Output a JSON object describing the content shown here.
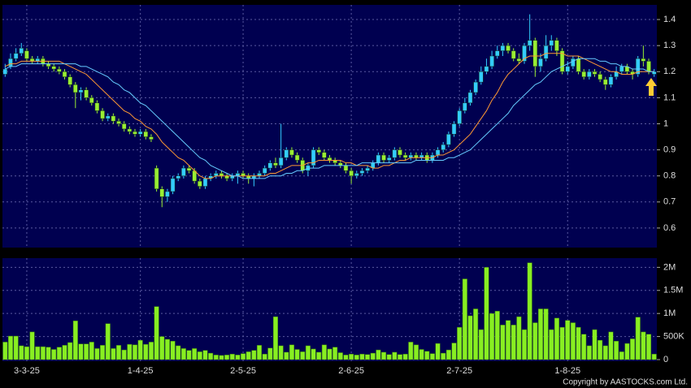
{
  "chart_data": [
    {
      "type": "candlestick",
      "up_color": "#33ccff",
      "down_color": "#99ee33",
      "grid": true,
      "categories": [
        null,
        null,
        null,
        null,
        "3-3-25",
        null,
        null,
        null,
        null,
        null,
        null,
        null,
        null,
        null,
        null,
        null,
        null,
        null,
        null,
        null,
        null,
        null,
        null,
        null,
        null,
        "1-4-25",
        null,
        null,
        null,
        null,
        null,
        null,
        null,
        null,
        null,
        null,
        null,
        null,
        null,
        null,
        null,
        null,
        null,
        null,
        "2-5-25",
        null,
        null,
        null,
        null,
        null,
        null,
        null,
        null,
        null,
        null,
        null,
        null,
        null,
        null,
        null,
        null,
        null,
        null,
        null,
        "2-6-25",
        null,
        null,
        null,
        null,
        null,
        null,
        null,
        null,
        null,
        null,
        null,
        null,
        null,
        null,
        null,
        null,
        null,
        null,
        null,
        "2-7-25",
        null,
        null,
        null,
        null,
        null,
        null,
        null,
        null,
        null,
        null,
        null,
        null,
        null,
        null,
        null,
        null,
        null,
        null,
        null,
        "1-8-25",
        null,
        null,
        null,
        null,
        null,
        null,
        null,
        null,
        null,
        null,
        null,
        null,
        null,
        null,
        null,
        null
      ],
      "open": [
        1.19,
        1.22,
        1.25,
        1.27,
        1.28,
        1.25,
        1.24,
        1.25,
        1.23,
        1.22,
        1.21,
        1.2,
        1.18,
        1.15,
        1.12,
        1.13,
        1.1,
        1.08,
        1.05,
        1.02,
        1.03,
        1.01,
        1.0,
        0.98,
        0.97,
        0.96,
        0.97,
        0.95,
        0.83,
        0.75,
        0.72,
        0.74,
        0.79,
        0.8,
        0.83,
        0.82,
        0.78,
        0.76,
        0.79,
        0.8,
        0.81,
        0.8,
        0.79,
        0.8,
        0.81,
        0.8,
        0.79,
        0.8,
        0.81,
        0.83,
        0.85,
        0.84,
        0.87,
        0.9,
        0.88,
        0.86,
        0.82,
        0.84,
        0.9,
        0.89,
        0.87,
        0.86,
        0.85,
        0.84,
        0.82,
        0.8,
        0.81,
        0.82,
        0.83,
        0.85,
        0.88,
        0.86,
        0.87,
        0.9,
        0.88,
        0.87,
        0.88,
        0.87,
        0.88,
        0.86,
        0.88,
        0.9,
        0.92,
        0.96,
        1.0,
        1.05,
        1.08,
        1.12,
        1.16,
        1.2,
        1.22,
        1.26,
        1.28,
        1.3,
        1.28,
        1.25,
        1.24,
        1.3,
        1.32,
        1.22,
        1.25,
        1.3,
        1.32,
        1.28,
        1.2,
        1.22,
        1.25,
        1.2,
        1.18,
        1.2,
        1.19,
        1.17,
        1.15,
        1.18,
        1.2,
        1.22,
        1.2,
        1.19,
        1.25,
        1.24,
        1.19
      ],
      "high": [
        1.23,
        1.27,
        1.29,
        1.31,
        1.29,
        1.26,
        1.26,
        1.26,
        1.24,
        1.23,
        1.22,
        1.21,
        1.19,
        1.16,
        1.14,
        1.14,
        1.11,
        1.09,
        1.06,
        1.04,
        1.04,
        1.02,
        1.01,
        0.99,
        0.98,
        0.98,
        0.98,
        0.96,
        0.84,
        0.76,
        0.75,
        0.8,
        0.81,
        0.84,
        0.84,
        0.83,
        0.79,
        0.8,
        0.81,
        0.82,
        0.82,
        0.81,
        0.81,
        0.82,
        0.82,
        0.81,
        0.81,
        0.82,
        0.84,
        0.86,
        0.87,
        1.0,
        0.91,
        0.91,
        0.89,
        0.87,
        0.85,
        0.91,
        0.91,
        0.9,
        0.88,
        0.87,
        0.86,
        0.85,
        0.83,
        0.82,
        0.83,
        0.84,
        0.86,
        0.89,
        0.89,
        0.88,
        0.91,
        0.91,
        0.89,
        0.89,
        0.89,
        0.89,
        0.89,
        0.89,
        0.91,
        0.93,
        0.97,
        1.01,
        1.06,
        1.1,
        1.13,
        1.17,
        1.22,
        1.25,
        1.28,
        1.3,
        1.31,
        1.31,
        1.29,
        1.27,
        1.31,
        1.42,
        1.33,
        1.27,
        1.34,
        1.34,
        1.33,
        1.29,
        1.24,
        1.26,
        1.26,
        1.21,
        1.21,
        1.21,
        1.2,
        1.18,
        1.19,
        1.22,
        1.23,
        1.23,
        1.21,
        1.26,
        1.3,
        1.25,
        1.21
      ],
      "low": [
        1.18,
        1.21,
        1.24,
        1.26,
        1.24,
        1.23,
        1.23,
        1.22,
        1.21,
        1.2,
        1.19,
        1.17,
        1.14,
        1.06,
        1.09,
        1.09,
        1.07,
        1.04,
        1.01,
        1.01,
        1.0,
        0.99,
        0.97,
        0.96,
        0.95,
        0.95,
        0.94,
        0.93,
        0.74,
        0.68,
        0.7,
        0.73,
        0.78,
        0.79,
        0.81,
        0.77,
        0.75,
        0.75,
        0.78,
        0.79,
        0.79,
        0.78,
        0.78,
        0.77,
        0.79,
        0.77,
        0.76,
        0.79,
        0.8,
        0.82,
        0.83,
        0.83,
        0.86,
        0.87,
        0.85,
        0.81,
        0.8,
        0.83,
        0.88,
        0.86,
        0.85,
        0.84,
        0.83,
        0.81,
        0.77,
        0.79,
        0.8,
        0.81,
        0.82,
        0.84,
        0.85,
        0.85,
        0.86,
        0.87,
        0.86,
        0.86,
        0.86,
        0.86,
        0.85,
        0.85,
        0.87,
        0.89,
        0.91,
        0.95,
        0.99,
        1.04,
        1.07,
        1.11,
        1.15,
        1.19,
        1.21,
        1.25,
        1.26,
        1.27,
        1.24,
        1.23,
        1.23,
        1.28,
        1.18,
        1.2,
        1.24,
        1.28,
        1.26,
        1.19,
        1.19,
        1.21,
        1.19,
        1.17,
        1.17,
        1.18,
        1.16,
        1.13,
        1.14,
        1.17,
        1.19,
        1.19,
        1.17,
        1.18,
        1.22,
        1.19,
        1.18
      ],
      "close": [
        1.21,
        1.25,
        1.27,
        1.29,
        1.25,
        1.24,
        1.25,
        1.23,
        1.22,
        1.21,
        1.2,
        1.18,
        1.15,
        1.12,
        1.13,
        1.1,
        1.08,
        1.05,
        1.02,
        1.03,
        1.01,
        1.0,
        0.98,
        0.97,
        0.96,
        0.97,
        0.95,
        0.94,
        0.75,
        0.72,
        0.74,
        0.79,
        0.8,
        0.83,
        0.82,
        0.78,
        0.76,
        0.79,
        0.8,
        0.81,
        0.8,
        0.79,
        0.8,
        0.81,
        0.8,
        0.79,
        0.8,
        0.81,
        0.83,
        0.85,
        0.84,
        0.87,
        0.9,
        0.88,
        0.86,
        0.82,
        0.84,
        0.9,
        0.89,
        0.87,
        0.86,
        0.85,
        0.84,
        0.82,
        0.8,
        0.81,
        0.82,
        0.83,
        0.85,
        0.88,
        0.86,
        0.87,
        0.9,
        0.88,
        0.87,
        0.88,
        0.87,
        0.88,
        0.86,
        0.88,
        0.9,
        0.92,
        0.96,
        1.0,
        1.05,
        1.08,
        1.12,
        1.16,
        1.2,
        1.22,
        1.26,
        1.28,
        1.3,
        1.28,
        1.25,
        1.24,
        1.3,
        1.32,
        1.22,
        1.25,
        1.3,
        1.32,
        1.28,
        1.2,
        1.22,
        1.25,
        1.2,
        1.18,
        1.2,
        1.19,
        1.17,
        1.15,
        1.18,
        1.2,
        1.22,
        1.2,
        1.19,
        1.25,
        1.24,
        1.2,
        1.2
      ],
      "series": [
        {
          "color": "#ff9933",
          "values": [
            1.22,
            1.23,
            1.23,
            1.24,
            1.24,
            1.24,
            1.24,
            1.24,
            1.24,
            1.24,
            1.24,
            1.23,
            1.22,
            1.21,
            1.2,
            1.19,
            1.17,
            1.15,
            1.13,
            1.11,
            1.09,
            1.07,
            1.05,
            1.04,
            1.02,
            1.01,
            0.99,
            0.98,
            0.96,
            0.93,
            0.91,
            0.89,
            0.87,
            0.86,
            0.84,
            0.82,
            0.8,
            0.79,
            0.79,
            0.8,
            0.8,
            0.8,
            0.8,
            0.8,
            0.8,
            0.8,
            0.8,
            0.8,
            0.8,
            0.81,
            0.81,
            0.82,
            0.83,
            0.84,
            0.84,
            0.84,
            0.85,
            0.85,
            0.86,
            0.86,
            0.86,
            0.86,
            0.86,
            0.85,
            0.85,
            0.84,
            0.84,
            0.84,
            0.83,
            0.83,
            0.84,
            0.84,
            0.85,
            0.86,
            0.86,
            0.87,
            0.87,
            0.87,
            0.87,
            0.87,
            0.88,
            0.88,
            0.89,
            0.9,
            0.92,
            0.94,
            0.96,
            0.99,
            1.02,
            1.05,
            1.09,
            1.12,
            1.16,
            1.19,
            1.21,
            1.23,
            1.25,
            1.26,
            1.26,
            1.26,
            1.27,
            1.27,
            1.27,
            1.27,
            1.26,
            1.26,
            1.26,
            1.25,
            1.24,
            1.23,
            1.22,
            1.21,
            1.2,
            1.2,
            1.19,
            1.19,
            1.19,
            1.2,
            1.2,
            1.2,
            1.2
          ]
        },
        {
          "color": "#66ccff",
          "values": [
            1.21,
            1.22,
            1.22,
            1.23,
            1.23,
            1.23,
            1.23,
            1.23,
            1.23,
            1.23,
            1.23,
            1.23,
            1.23,
            1.23,
            1.22,
            1.22,
            1.21,
            1.2,
            1.19,
            1.18,
            1.16,
            1.15,
            1.13,
            1.12,
            1.1,
            1.08,
            1.07,
            1.05,
            1.03,
            1.01,
            0.99,
            0.97,
            0.95,
            0.93,
            0.91,
            0.89,
            0.87,
            0.86,
            0.84,
            0.83,
            0.82,
            0.81,
            0.8,
            0.8,
            0.79,
            0.79,
            0.79,
            0.79,
            0.79,
            0.8,
            0.8,
            0.8,
            0.81,
            0.81,
            0.82,
            0.82,
            0.83,
            0.83,
            0.83,
            0.84,
            0.84,
            0.84,
            0.84,
            0.84,
            0.84,
            0.84,
            0.85,
            0.85,
            0.85,
            0.85,
            0.85,
            0.85,
            0.85,
            0.85,
            0.85,
            0.85,
            0.86,
            0.86,
            0.86,
            0.86,
            0.86,
            0.86,
            0.87,
            0.87,
            0.88,
            0.89,
            0.9,
            0.92,
            0.94,
            0.96,
            0.98,
            1.0,
            1.02,
            1.04,
            1.07,
            1.09,
            1.11,
            1.13,
            1.15,
            1.16,
            1.18,
            1.2,
            1.21,
            1.22,
            1.23,
            1.24,
            1.25,
            1.25,
            1.25,
            1.25,
            1.24,
            1.24,
            1.23,
            1.23,
            1.22,
            1.22,
            1.21,
            1.21,
            1.21,
            1.2,
            1.2
          ]
        }
      ],
      "ylim": [
        0.525,
        1.45
      ],
      "yticks": [
        0.6,
        0.7,
        0.8,
        0.9,
        1,
        1.1,
        1.2,
        1.3,
        1.4
      ]
    },
    {
      "type": "bar",
      "color": "#88ee22",
      "grid": true,
      "values": [
        380000,
        510000,
        510000,
        300000,
        280000,
        600000,
        280000,
        280000,
        270000,
        220000,
        270000,
        310000,
        370000,
        840000,
        340000,
        340000,
        380000,
        240000,
        310000,
        780000,
        240000,
        310000,
        210000,
        330000,
        320000,
        420000,
        330000,
        380000,
        1150000,
        500000,
        440000,
        400000,
        300000,
        240000,
        200000,
        240000,
        170000,
        200000,
        140000,
        100000,
        90000,
        100000,
        120000,
        100000,
        130000,
        170000,
        200000,
        310000,
        120000,
        250000,
        930000,
        300000,
        160000,
        320000,
        220000,
        170000,
        300000,
        230000,
        160000,
        320000,
        230000,
        270000,
        150000,
        100000,
        120000,
        100000,
        120000,
        110000,
        140000,
        210000,
        160000,
        110000,
        160000,
        110000,
        120000,
        380000,
        320000,
        220000,
        180000,
        130000,
        350000,
        140000,
        210000,
        360000,
        700000,
        1750000,
        950000,
        1100000,
        650000,
        2000000,
        1000000,
        1050000,
        750000,
        850000,
        750000,
        930000,
        650000,
        2100000,
        800000,
        1100000,
        1100000,
        650000,
        900000,
        700000,
        850000,
        800000,
        700000,
        550000,
        300000,
        650000,
        420000,
        300000,
        600000,
        400000,
        170000,
        350000,
        450000,
        920000,
        600000,
        550000,
        120000
      ],
      "ylim": [
        0,
        2200000
      ],
      "yticks": [
        0,
        {
          "value": 500000,
          "label": "500K"
        },
        {
          "value": 1000000,
          "label": "1M"
        },
        {
          "value": 1500000,
          "label": "1.5M"
        },
        {
          "value": 2000000,
          "label": "2M"
        }
      ]
    }
  ],
  "footer": "Copyright by AASTOCKS.com Ltd."
}
